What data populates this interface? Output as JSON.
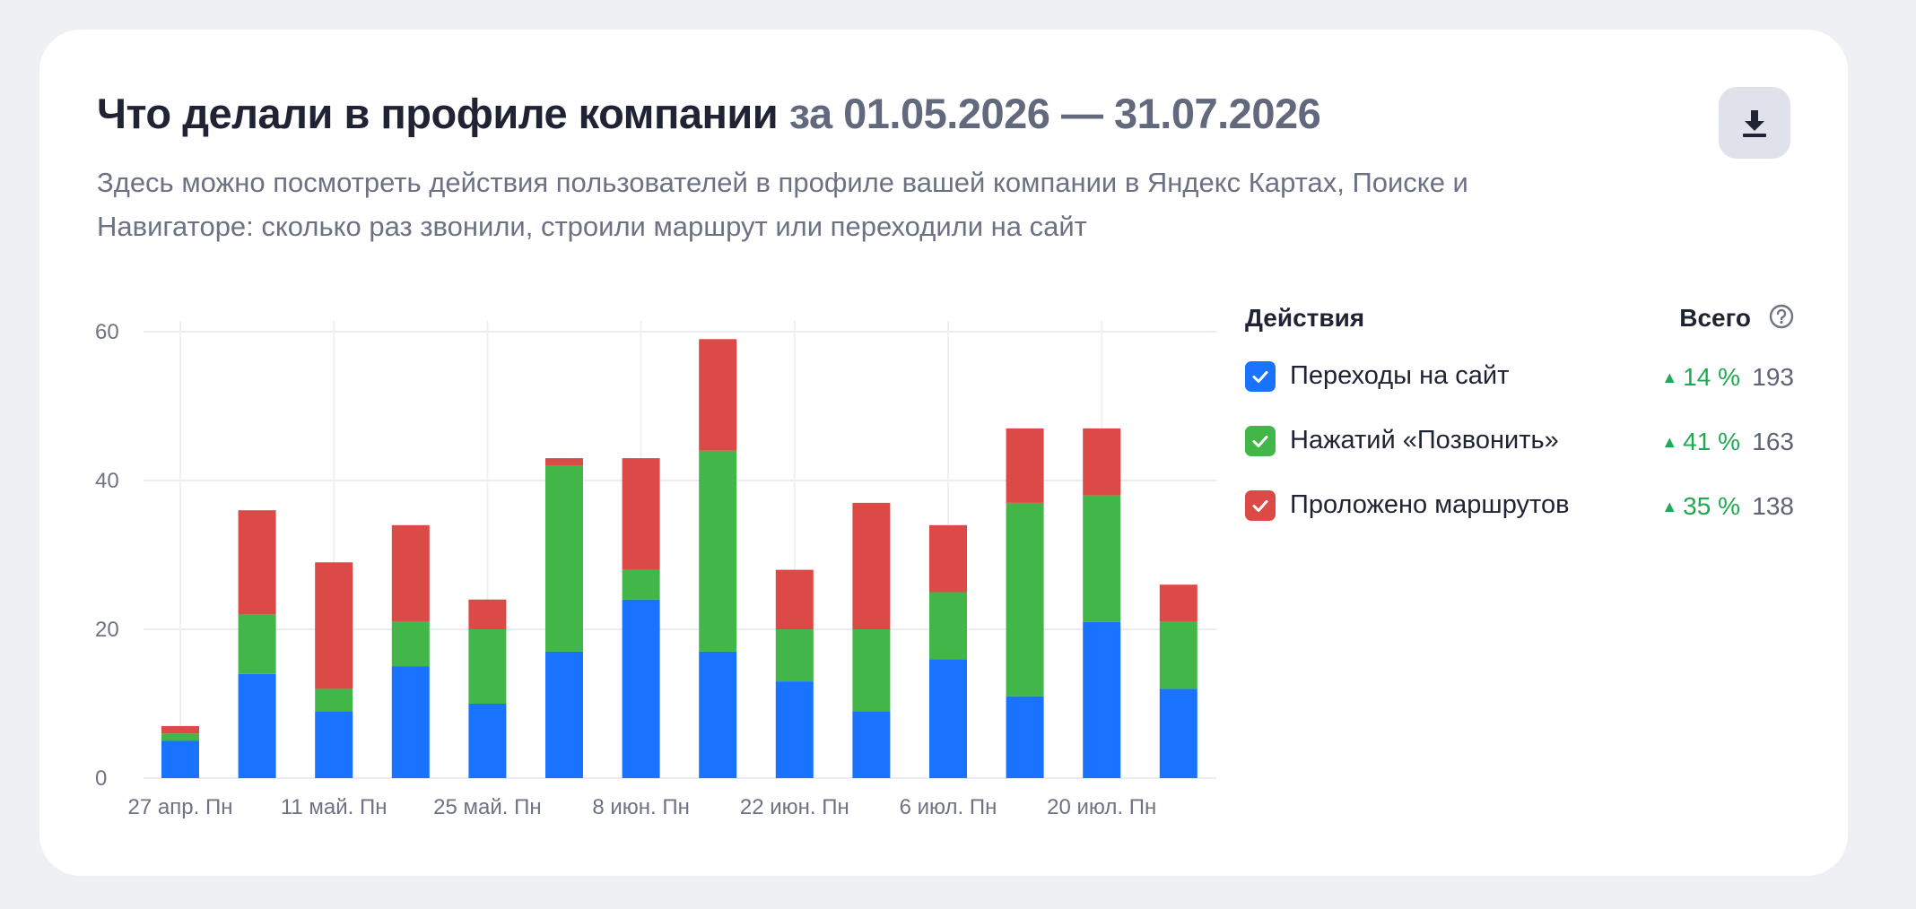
{
  "header": {
    "title": "Что делали в профиле компании",
    "period": "за 01.05.2026 — 31.07.2026",
    "subtitle": "Здесь можно посмотреть действия пользователей в профиле вашей компании в Яндекс Картах, Поиске и Навигаторе: сколько раз звонили, строили маршрут или переходили на сайт",
    "download_icon": "download-icon"
  },
  "legend": {
    "actions_label": "Действия",
    "total_label": "Всего",
    "help_icon": "question-circle-icon",
    "items": [
      {
        "label": "Переходы на сайт",
        "change": "14 %",
        "total": "193",
        "color": "#1a73ff"
      },
      {
        "label": "Нажатий «Позвонить»",
        "change": "41 %",
        "total": "163",
        "color": "#42b649"
      },
      {
        "label": "Проложено маршрутов",
        "change": "35 %",
        "total": "138",
        "color": "#dc4a47"
      }
    ],
    "change_color": "#20a852"
  },
  "chart_data": {
    "type": "bar",
    "stacked": true,
    "ylim": [
      0,
      60
    ],
    "yticks": [
      0,
      20,
      40,
      60
    ],
    "grid": true,
    "x_tick_labels": [
      "27 апр. Пн",
      "11 май. Пн",
      "25 май. Пн",
      "8 июн. Пн",
      "22 июн. Пн",
      "6 июл. Пн",
      "20 июл. Пн"
    ],
    "series": [
      {
        "name": "Переходы на сайт",
        "color": "#1a73ff",
        "values": [
          5,
          14,
          9,
          15,
          10,
          17,
          24,
          17,
          13,
          9,
          16,
          11,
          21,
          12
        ]
      },
      {
        "name": "Нажатий «Позвонить»",
        "color": "#42b649",
        "values": [
          1,
          8,
          3,
          6,
          10,
          25,
          4,
          27,
          7,
          11,
          9,
          26,
          17,
          9
        ]
      },
      {
        "name": "Проложено маршрутов",
        "color": "#dc4a47",
        "values": [
          1,
          14,
          17,
          13,
          4,
          1,
          15,
          15,
          8,
          17,
          9,
          10,
          9,
          5
        ]
      }
    ]
  }
}
